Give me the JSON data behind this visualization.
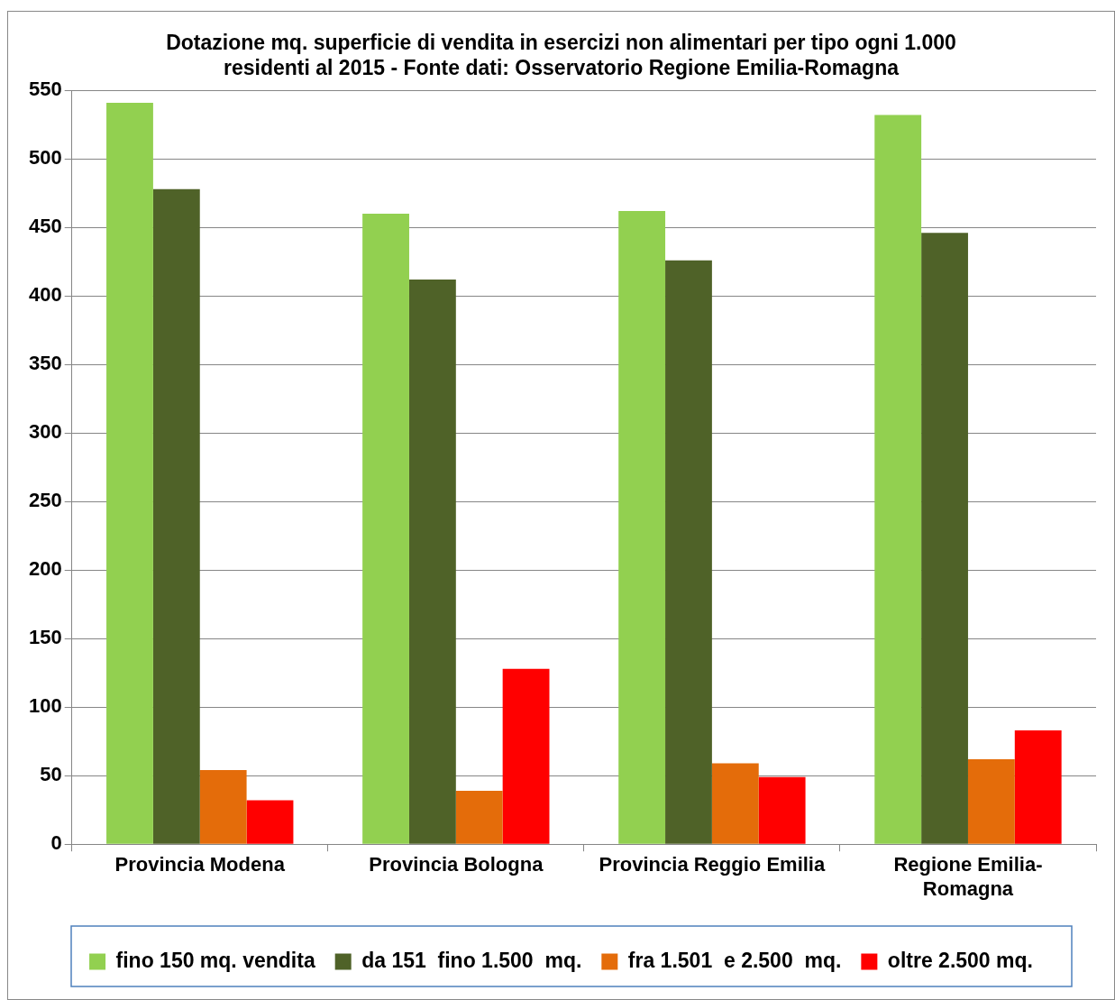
{
  "chart_data": {
    "type": "bar",
    "title": "Dotazione mq. superficie di vendita in esercizi non alimentari per tipo ogni 1.000 residenti al 2015 - Fonte dati: Osservatorio Regione Emilia-Romagna",
    "categories": [
      "Provincia Modena",
      "Provincia Bologna",
      "Provincia Reggio Emilia",
      "Regione Emilia-Romagna"
    ],
    "series": [
      {
        "name": "fino 150 mq. vendita",
        "color": "#92d050",
        "values": [
          541,
          460,
          462,
          532
        ]
      },
      {
        "name": "da 151  fino 1.500  mq.",
        "color": "#4f6228",
        "values": [
          478,
          412,
          426,
          446
        ]
      },
      {
        "name": "fra 1.501  e 2.500  mq.",
        "color": "#e46c0a",
        "values": [
          54,
          39,
          59,
          62
        ]
      },
      {
        "name": "oltre 2.500 mq.",
        "color": "#ff0000",
        "values": [
          32,
          128,
          49,
          83
        ]
      }
    ],
    "ylim": [
      0,
      550
    ],
    "yticks": [
      0,
      50,
      100,
      150,
      200,
      250,
      300,
      350,
      400,
      450,
      500,
      550
    ],
    "grid": "y",
    "legend": "bottom"
  }
}
